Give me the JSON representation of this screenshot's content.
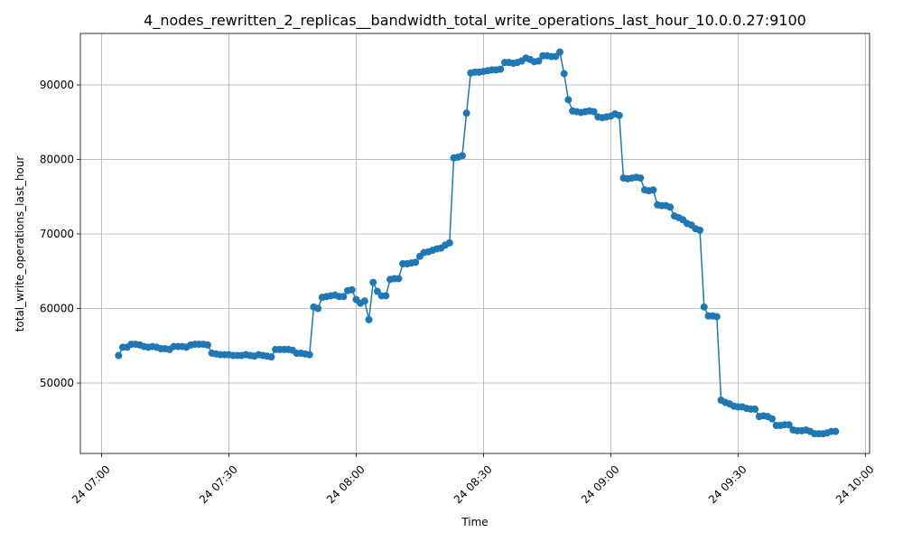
{
  "chart_data": {
    "type": "line",
    "title": "4_nodes_rewritten_2_replicas__bandwidth_total_write_operations_last_hour_10.0.0.27:9100",
    "xlabel": "Time",
    "ylabel": "total_write_operations_last_hour",
    "color": "#1f77b4",
    "grid": true,
    "marker": true,
    "xlim": [
      "24 06:55",
      "24 10:01"
    ],
    "xticks": [
      "24 07:00",
      "24 07:30",
      "24 08:00",
      "24 08:30",
      "24 09:00",
      "24 09:30",
      "24 10:00"
    ],
    "ylim": [
      40550,
      96900
    ],
    "yticks": [
      50000,
      60000,
      70000,
      80000,
      90000
    ],
    "x": [
      "24 07:04",
      "24 07:05",
      "24 07:06",
      "24 07:07",
      "24 07:08",
      "24 07:09",
      "24 07:10",
      "24 07:11",
      "24 07:12",
      "24 07:13",
      "24 07:14",
      "24 07:15",
      "24 07:16",
      "24 07:17",
      "24 07:18",
      "24 07:19",
      "24 07:20",
      "24 07:21",
      "24 07:22",
      "24 07:23",
      "24 07:24",
      "24 07:25",
      "24 07:26",
      "24 07:27",
      "24 07:28",
      "24 07:29",
      "24 07:30",
      "24 07:31",
      "24 07:32",
      "24 07:33",
      "24 07:34",
      "24 07:35",
      "24 07:36",
      "24 07:37",
      "24 07:38",
      "24 07:39",
      "24 07:40",
      "24 07:41",
      "24 07:42",
      "24 07:43",
      "24 07:44",
      "24 07:45",
      "24 07:46",
      "24 07:47",
      "24 07:48",
      "24 07:49",
      "24 07:50",
      "24 07:51",
      "24 07:52",
      "24 07:53",
      "24 07:54",
      "24 07:55",
      "24 07:56",
      "24 07:57",
      "24 07:58",
      "24 07:59",
      "24 08:00",
      "24 08:01",
      "24 08:02",
      "24 08:03",
      "24 08:04",
      "24 08:05",
      "24 08:06",
      "24 08:07",
      "24 08:08",
      "24 08:09",
      "24 08:10",
      "24 08:11",
      "24 08:12",
      "24 08:13",
      "24 08:14",
      "24 08:15",
      "24 08:16",
      "24 08:17",
      "24 08:18",
      "24 08:19",
      "24 08:20",
      "24 08:21",
      "24 08:22",
      "24 08:23",
      "24 08:24",
      "24 08:25",
      "24 08:26",
      "24 08:27",
      "24 08:28",
      "24 08:29",
      "24 08:30",
      "24 08:31",
      "24 08:32",
      "24 08:33",
      "24 08:34",
      "24 08:35",
      "24 08:36",
      "24 08:37",
      "24 08:38",
      "24 08:39",
      "24 08:40",
      "24 08:41",
      "24 08:42",
      "24 08:43",
      "24 08:44",
      "24 08:45",
      "24 08:46",
      "24 08:47",
      "24 08:48",
      "24 08:49",
      "24 08:50",
      "24 08:51",
      "24 08:52",
      "24 08:53",
      "24 08:54",
      "24 08:55",
      "24 08:56",
      "24 08:57",
      "24 08:58",
      "24 08:59",
      "24 09:00",
      "24 09:01",
      "24 09:02",
      "24 09:03",
      "24 09:04",
      "24 09:05",
      "24 09:06",
      "24 09:07",
      "24 09:08",
      "24 09:09",
      "24 09:10",
      "24 09:11",
      "24 09:12",
      "24 09:13",
      "24 09:14",
      "24 09:15",
      "24 09:16",
      "24 09:17",
      "24 09:18",
      "24 09:19",
      "24 09:20",
      "24 09:21",
      "24 09:22",
      "24 09:23",
      "24 09:24",
      "24 09:25",
      "24 09:26",
      "24 09:27",
      "24 09:28",
      "24 09:29",
      "24 09:30",
      "24 09:31",
      "24 09:32",
      "24 09:33",
      "24 09:34",
      "24 09:35",
      "24 09:36",
      "24 09:37",
      "24 09:38",
      "24 09:39",
      "24 09:40",
      "24 09:41",
      "24 09:42",
      "24 09:43",
      "24 09:44",
      "24 09:45",
      "24 09:46",
      "24 09:47",
      "24 09:48",
      "24 09:49",
      "24 09:50",
      "24 09:51",
      "24 09:52",
      "24 09:53"
    ],
    "values": [
      53700,
      54800,
      54800,
      55200,
      55200,
      55100,
      54900,
      54800,
      54900,
      54800,
      54600,
      54600,
      54500,
      54900,
      54900,
      54900,
      54800,
      55100,
      55200,
      55200,
      55200,
      55100,
      54000,
      53900,
      53800,
      53800,
      53800,
      53700,
      53700,
      53700,
      53800,
      53700,
      53600,
      53800,
      53700,
      53600,
      53500,
      54500,
      54500,
      54500,
      54500,
      54400,
      54000,
      54000,
      53900,
      53800,
      60200,
      60000,
      61500,
      61600,
      61700,
      61800,
      61600,
      61600,
      62400,
      62500,
      61200,
      60700,
      61000,
      58500,
      63500,
      62300,
      61700,
      61700,
      63900,
      64000,
      64000,
      66000,
      66000,
      66100,
      66200,
      67000,
      67500,
      67600,
      67800,
      68000,
      68100,
      68500,
      68800,
      80200,
      80300,
      80500,
      86200,
      91600,
      91700,
      91700,
      91800,
      91900,
      92000,
      92000,
      92100,
      93000,
      93000,
      92900,
      93000,
      93200,
      93600,
      93400,
      93100,
      93200,
      93900,
      93900,
      93800,
      93800,
      94400,
      91500,
      88000,
      86500,
      86400,
      86300,
      86400,
      86500,
      86400,
      85700,
      85600,
      85700,
      85800,
      86100,
      85900,
      77500,
      77400,
      77500,
      77600,
      77500,
      75900,
      75800,
      75900,
      73900,
      73800,
      73800,
      73600,
      72400,
      72200,
      71900,
      71400,
      71200,
      70700,
      70500,
      60200,
      59000,
      59000,
      58900,
      47700,
      47400,
      47200,
      46900,
      46800,
      46800,
      46600,
      46500,
      46500,
      45500,
      45600,
      45500,
      45200,
      44300,
      44300,
      44400,
      44400,
      43700,
      43600,
      43600,
      43700,
      43500,
      43200,
      43200,
      43200,
      43300,
      43500,
      43500
    ]
  }
}
